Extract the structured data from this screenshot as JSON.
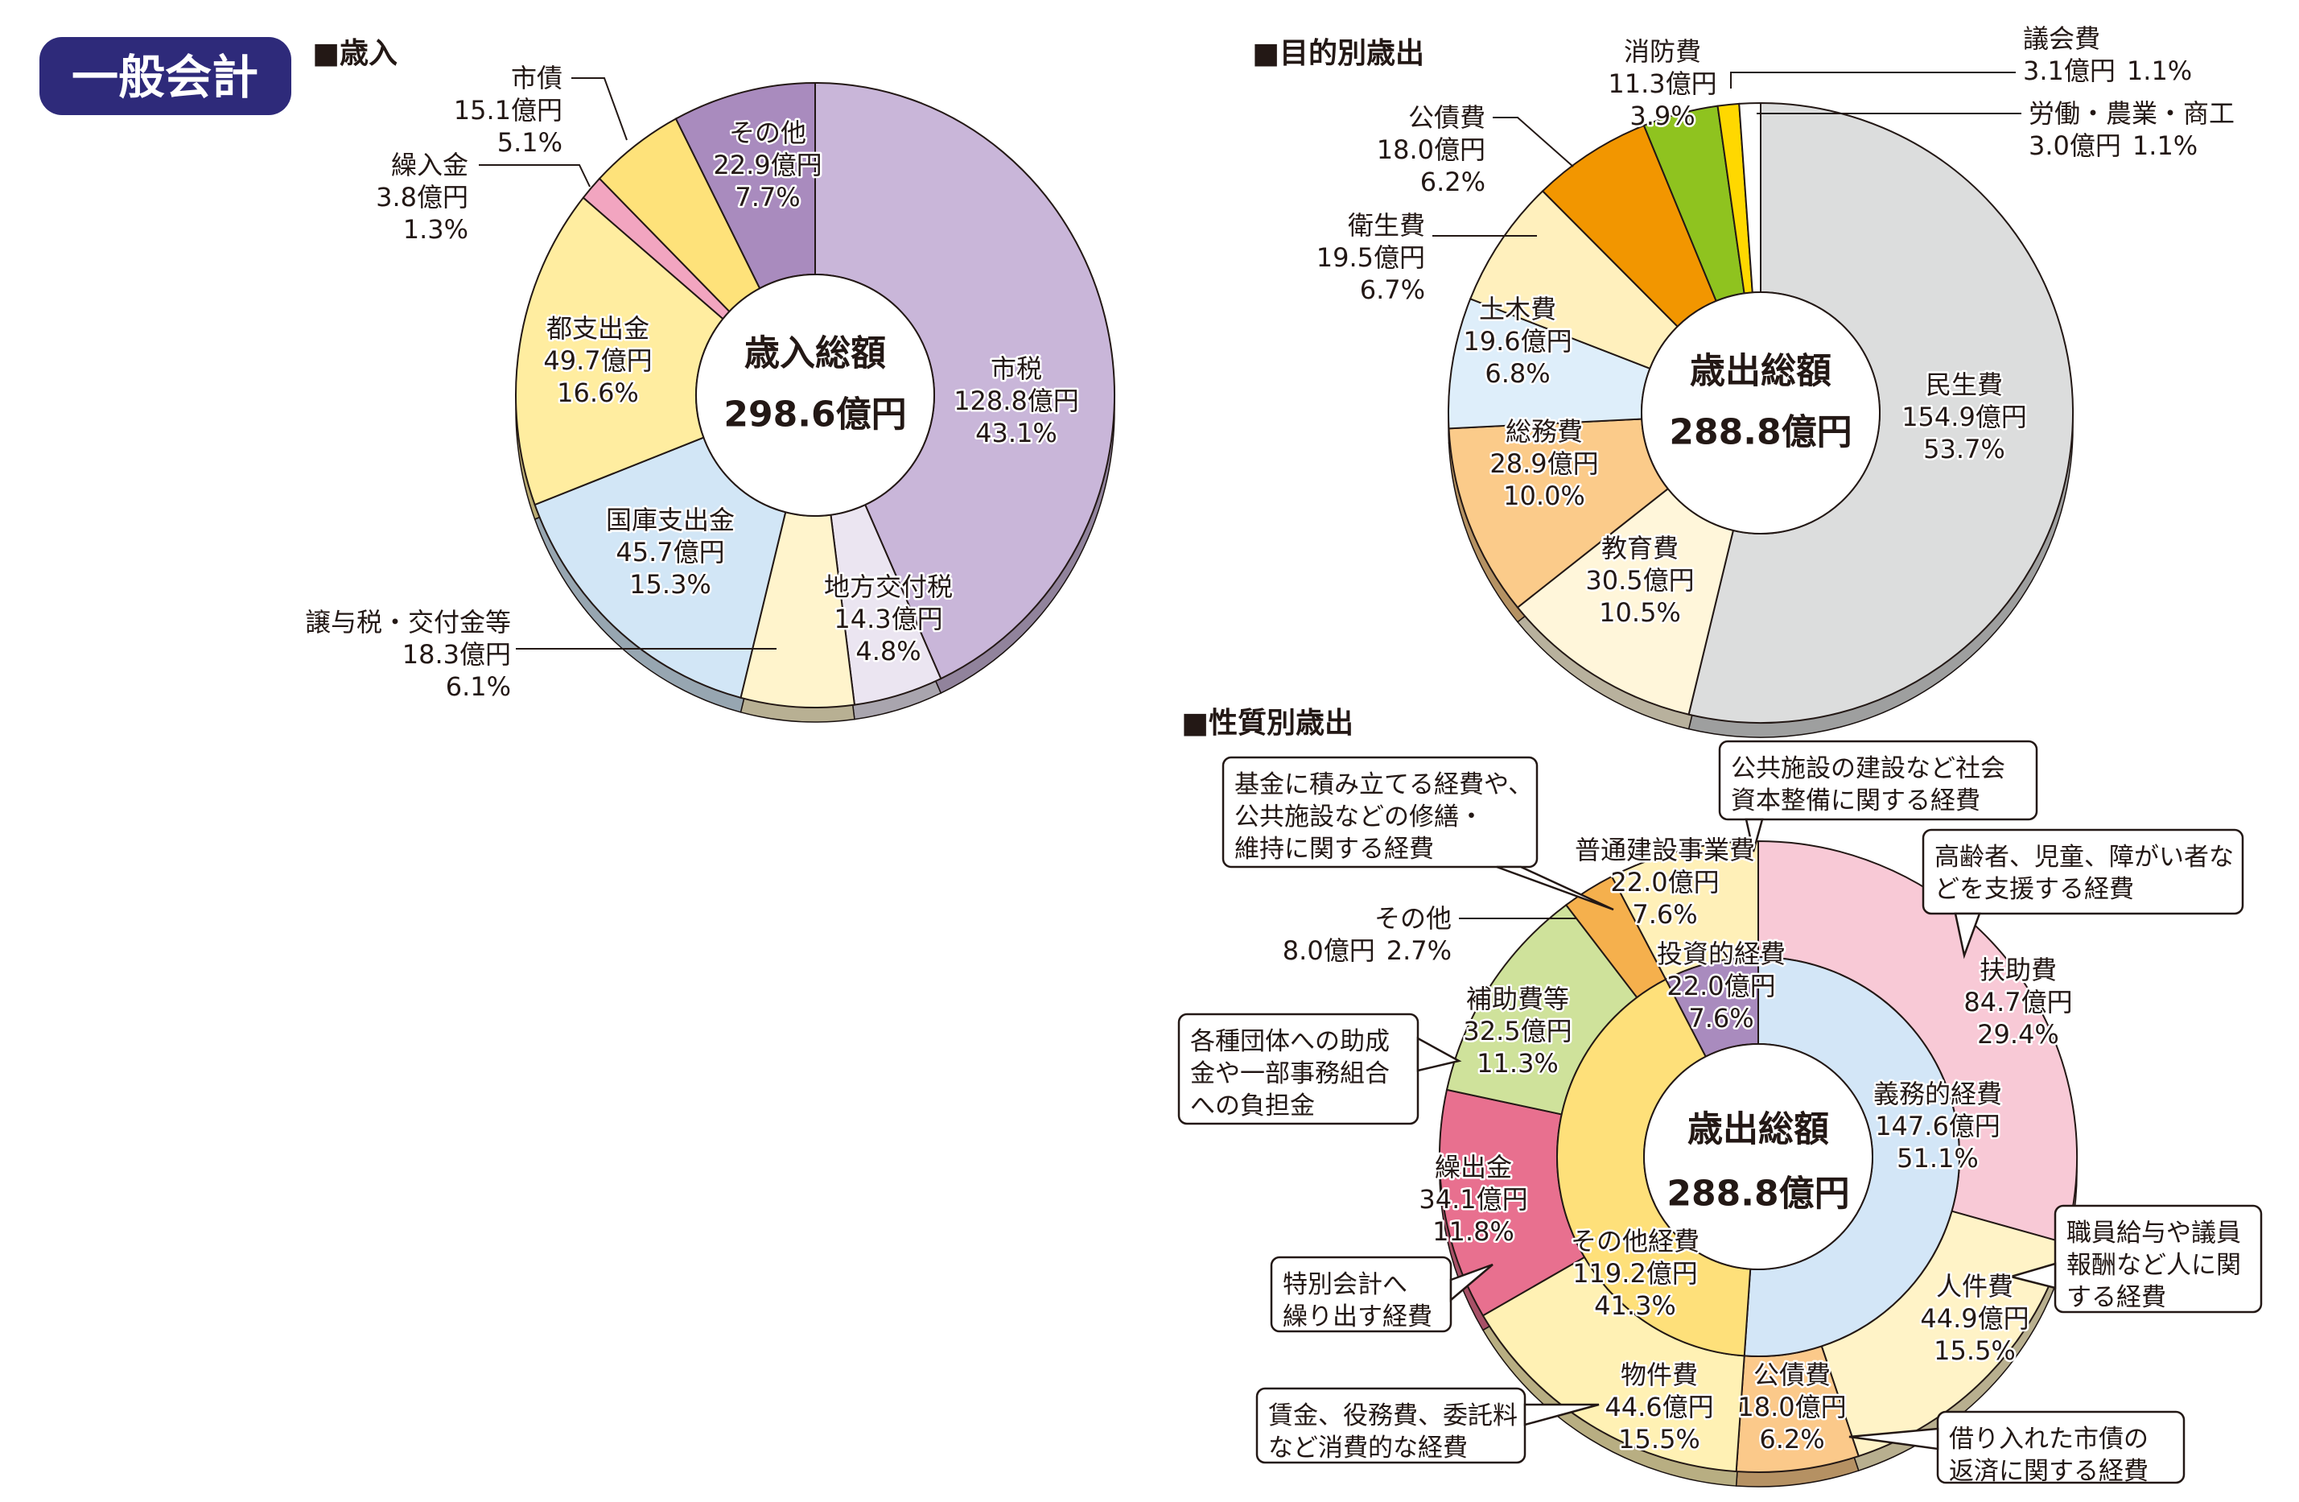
{
  "badge": "一般会計",
  "chart_data": [
    {
      "type": "pie",
      "title": "■歳入",
      "center_label": "歳入総額",
      "total": "298.6億円",
      "slices": [
        {
          "name": "市税",
          "amount": "128.8億円",
          "percent": "43.1%",
          "value": 43.1,
          "color": "#c9b6d9"
        },
        {
          "name": "地方交付税",
          "amount": "14.3億円",
          "percent": "4.8%",
          "value": 4.8,
          "color": "#ebe5f1"
        },
        {
          "name": "譲与税・交付金等",
          "amount": "18.3億円",
          "percent": "6.1%",
          "value": 6.1,
          "color": "#fff4cc"
        },
        {
          "name": "国庫支出金",
          "amount": "45.7億円",
          "percent": "15.3%",
          "value": 15.3,
          "color": "#d2e6f6"
        },
        {
          "name": "都支出金",
          "amount": "49.7億円",
          "percent": "16.6%",
          "value": 16.6,
          "color": "#ffeda0"
        },
        {
          "name": "繰入金",
          "amount": "3.8億円",
          "percent": "1.3%",
          "value": 1.3,
          "color": "#f2a5c0"
        },
        {
          "name": "市債",
          "amount": "15.1億円",
          "percent": "5.1%",
          "value": 5.1,
          "color": "#fee27a"
        },
        {
          "name": "その他",
          "amount": "22.9億円",
          "percent": "7.7%",
          "value": 7.7,
          "color": "#a98bbe"
        }
      ]
    },
    {
      "type": "pie",
      "title": "■目的別歳出",
      "center_label": "歳出総額",
      "total": "288.8億円",
      "slices": [
        {
          "name": "民生費",
          "amount": "154.9億円",
          "percent": "53.7%",
          "value": 53.7,
          "color": "#dcdddd"
        },
        {
          "name": "教育費",
          "amount": "30.5億円",
          "percent": "10.5%",
          "value": 10.5,
          "color": "#fff6da"
        },
        {
          "name": "総務費",
          "amount": "28.9億円",
          "percent": "10.0%",
          "value": 10.0,
          "color": "#fbcb8a"
        },
        {
          "name": "土木費",
          "amount": "19.6億円",
          "percent": "6.8%",
          "value": 6.8,
          "color": "#deeefa"
        },
        {
          "name": "衛生費",
          "amount": "19.5億円",
          "percent": "6.7%",
          "value": 6.7,
          "color": "#fff0bd"
        },
        {
          "name": "公債費",
          "amount": "18.0億円",
          "percent": "6.2%",
          "value": 6.2,
          "color": "#f29600"
        },
        {
          "name": "消防費",
          "amount": "11.3億円",
          "percent": "3.9%",
          "value": 3.9,
          "color": "#8fc31f"
        },
        {
          "name": "議会費",
          "amount": "3.1億円",
          "percent": "1.1%",
          "value": 1.1,
          "color": "#ffd800"
        },
        {
          "name": "労働・農業・商工",
          "amount": "3.0億円",
          "percent": "1.1%",
          "value": 1.1,
          "color": "#ffffff"
        }
      ]
    },
    {
      "type": "pie",
      "title": "■性質別歳出",
      "center_label": "歳出総額",
      "total": "288.8億円",
      "outer": [
        {
          "name": "扶助費",
          "amount": "84.7億円",
          "percent": "29.4%",
          "value": 29.4,
          "color": "#f8c9d6"
        },
        {
          "name": "人件費",
          "amount": "44.9億円",
          "percent": "15.5%",
          "value": 15.5,
          "color": "#fff3c7"
        },
        {
          "name": "公債費",
          "amount": "18.0億円",
          "percent": "6.2%",
          "value": 6.2,
          "color": "#fbc98a"
        },
        {
          "name": "物件費",
          "amount": "44.6億円",
          "percent": "15.5%",
          "value": 15.5,
          "color": "#fff1b4"
        },
        {
          "name": "繰出金",
          "amount": "34.1億円",
          "percent": "11.8%",
          "value": 11.8,
          "color": "#e8708f"
        },
        {
          "name": "補助費等",
          "amount": "32.5億円",
          "percent": "11.3%",
          "value": 11.3,
          "color": "#cfe29b"
        },
        {
          "name": "その他",
          "amount": "8.0億円",
          "percent": "2.7%",
          "value": 2.7,
          "color": "#f5b04d"
        },
        {
          "name": "普通建設事業費",
          "amount": "22.0億円",
          "percent": "7.6%",
          "value": 7.6,
          "color": "#fff0b8"
        }
      ],
      "inner": [
        {
          "name": "義務的経費",
          "amount": "147.6億円",
          "percent": "51.1%",
          "value": 51.1,
          "color": "#d3e6f7"
        },
        {
          "name": "その他経費",
          "amount": "119.2億円",
          "percent": "41.3%",
          "value": 41.3,
          "color": "#fee07a"
        },
        {
          "name": "投資的経費",
          "amount": "22.0億円",
          "percent": "7.6%",
          "value": 7.6,
          "color": "#a98bbe"
        }
      ],
      "annotations": [
        {
          "target": "その他",
          "lines": [
            "基金に積み立てる経費や、",
            "公共施設などの修繕・",
            "維持に関する経費"
          ]
        },
        {
          "target": "普通建設事業費",
          "lines": [
            "公共施設の建設など社会",
            "資本整備に関する経費"
          ]
        },
        {
          "target": "扶助費",
          "lines": [
            "高齢者、児童、障がい者な",
            "どを支援する経費"
          ]
        },
        {
          "target": "補助費等",
          "lines": [
            "各種団体への助成",
            "金や一部事務組合",
            "への負担金"
          ]
        },
        {
          "target": "人件費",
          "lines": [
            "職員給与や議員",
            "報酬など人に関",
            "する経費"
          ]
        },
        {
          "target": "繰出金",
          "lines": [
            "特別会計へ",
            "繰り出す経費"
          ]
        },
        {
          "target": "物件費",
          "lines": [
            "賃金、役務費、委託料",
            "など消費的な経費"
          ]
        },
        {
          "target": "公債費",
          "lines": [
            "借り入れた市債の",
            "返済に関する経費"
          ]
        }
      ]
    }
  ],
  "colors": {
    "badge": "#2e2a7a"
  }
}
